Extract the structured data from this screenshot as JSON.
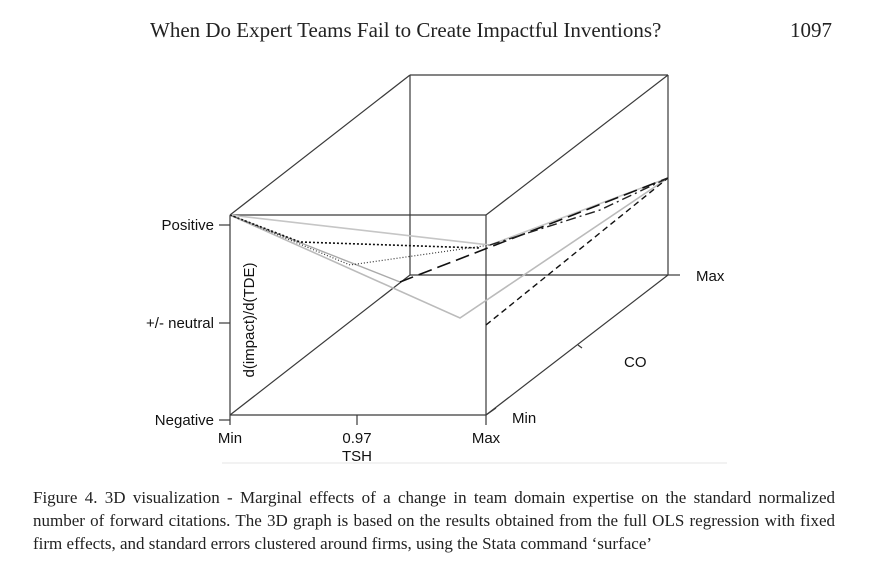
{
  "header": {
    "running_title": "When Do Expert Teams Fail to Create Impactful Inventions?",
    "page_number": "1097"
  },
  "figure": {
    "caption": "Figure 4. 3D visualization - Marginal effects of a change in team domain expertise on the standard normalized number of forward citations. The 3D graph is based on the results obtained from the full OLS regression with fixed firm effects, and standard errors clustered around firms, using the Stata command ‘surface’"
  },
  "chart_data": {
    "type": "3d-surface",
    "z_axis": {
      "label": "d(impact)/d(TDE)",
      "ticks": [
        "Positive",
        "+/- neutral",
        "Negative"
      ]
    },
    "x_axis": {
      "label": "TSH",
      "ticks": [
        "Min",
        "0.97",
        "Max"
      ]
    },
    "depth_axis": {
      "label": "CO",
      "ticks": [
        "Min",
        "Max"
      ]
    }
  }
}
